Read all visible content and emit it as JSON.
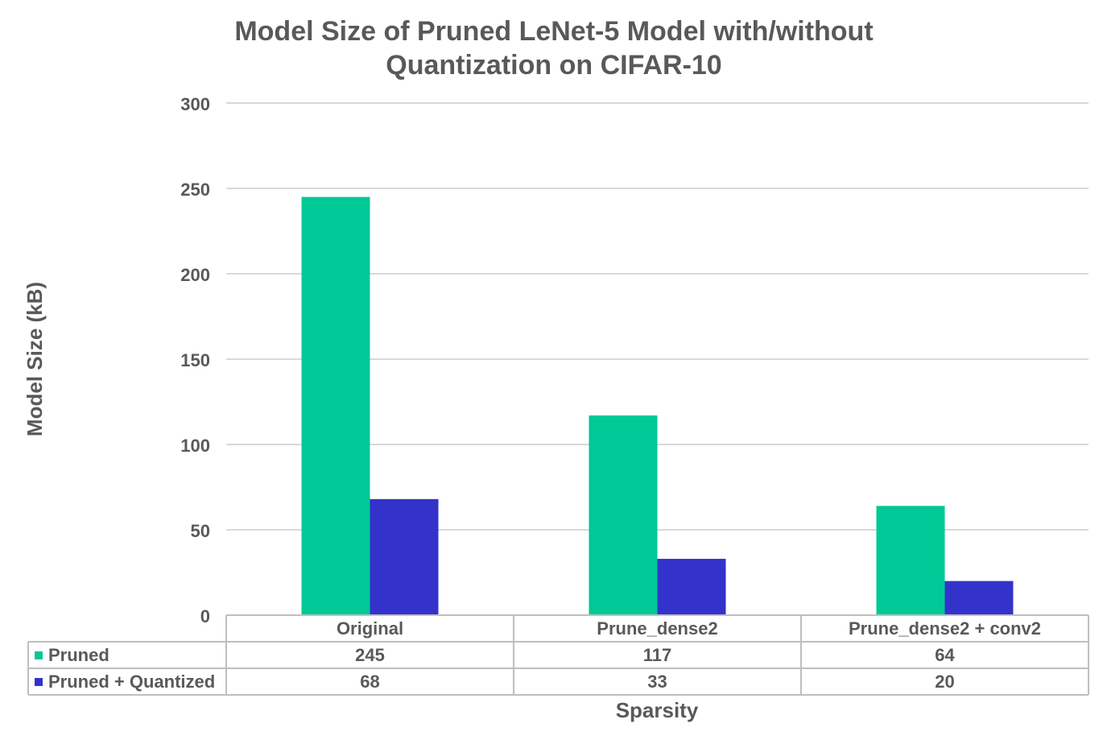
{
  "chart_data": {
    "type": "bar",
    "title_lines": [
      "Model Size of Pruned LeNet-5 Model with/without",
      "Quantization on CIFAR-10"
    ],
    "xlabel": "Sparsity",
    "ylabel": "Model Size (kB)",
    "categories": [
      "Original",
      "Prune_dense2",
      "Prune_dense2 + conv2"
    ],
    "ylim": [
      0,
      300
    ],
    "yticks": [
      0,
      50,
      100,
      150,
      200,
      250,
      300
    ],
    "grid": true,
    "legend": "data-table",
    "series": [
      {
        "name": "Pruned",
        "values": [
          245,
          117,
          64
        ],
        "color": "#00C896"
      },
      {
        "name": "Pruned + Quantized",
        "values": [
          68,
          33,
          20
        ],
        "color": "#3333CC"
      }
    ]
  },
  "colors": {
    "text": "#595959",
    "grid": "#D9D9D9",
    "table_border": "#BFBFBF"
  }
}
